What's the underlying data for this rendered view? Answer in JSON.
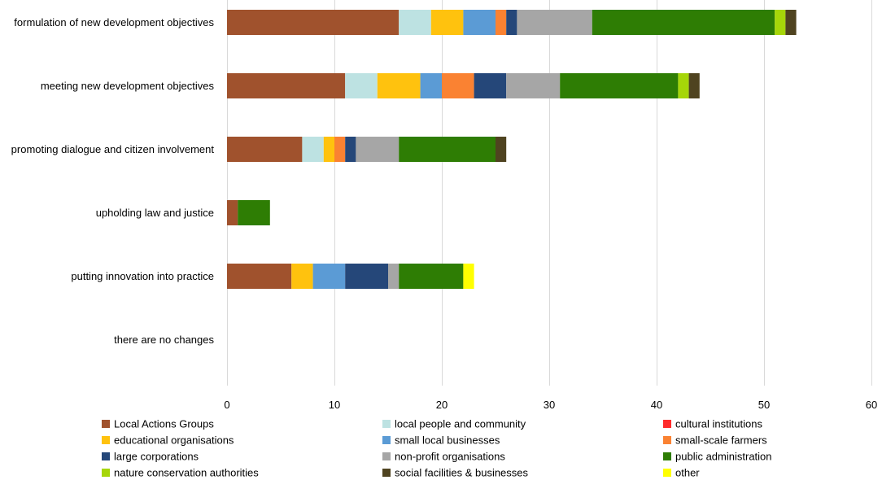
{
  "chart_data": {
    "type": "bar",
    "orientation": "horizontal",
    "stacked": true,
    "title": "",
    "xlabel": "",
    "ylabel": "",
    "xlim": [
      0,
      60
    ],
    "xticks": [
      0,
      10,
      20,
      30,
      40,
      50,
      60
    ],
    "grid": true,
    "legend_position": "bottom",
    "categories": [
      "formulation of new development objectives",
      "meeting new development objectives",
      "promoting dialogue and citizen involvement",
      "upholding law and justice",
      "putting innovation into practice",
      "there are no changes"
    ],
    "series": [
      {
        "name": "Local Actions Groups",
        "color": "#a0522d",
        "values": [
          16,
          11,
          7,
          1,
          6,
          0
        ]
      },
      {
        "name": "local people and community",
        "color": "#bde2e2",
        "values": [
          3,
          3,
          2,
          0,
          0,
          0
        ]
      },
      {
        "name": "cultural institutions",
        "color": "#ff2b2b",
        "values": [
          0,
          0,
          0,
          0,
          0,
          0
        ]
      },
      {
        "name": "educational organisations",
        "color": "#ffc20e",
        "values": [
          3,
          4,
          1,
          0,
          2,
          0
        ]
      },
      {
        "name": "small local businesses",
        "color": "#5b9bd5",
        "values": [
          3,
          2,
          0,
          0,
          3,
          0
        ]
      },
      {
        "name": "small-scale farmers",
        "color": "#fa8232",
        "values": [
          1,
          3,
          1,
          0,
          0,
          0
        ]
      },
      {
        "name": "large corporations",
        "color": "#254779",
        "values": [
          1,
          3,
          1,
          0,
          4,
          0
        ]
      },
      {
        "name": "non-profit organisations",
        "color": "#a6a6a6",
        "values": [
          7,
          5,
          4,
          0,
          1,
          0
        ]
      },
      {
        "name": "public administration",
        "color": "#2e7d04",
        "values": [
          17,
          11,
          9,
          3,
          6,
          0
        ]
      },
      {
        "name": "nature conservation authorities",
        "color": "#a6d609",
        "values": [
          1,
          1,
          0,
          0,
          0,
          0
        ]
      },
      {
        "name": "social facilities & businesses",
        "color": "#4f4320",
        "values": [
          1,
          1,
          1,
          0,
          0,
          0
        ]
      },
      {
        "name": "other",
        "color": "#ffff00",
        "values": [
          0,
          0,
          0,
          0,
          1,
          0
        ]
      }
    ]
  }
}
